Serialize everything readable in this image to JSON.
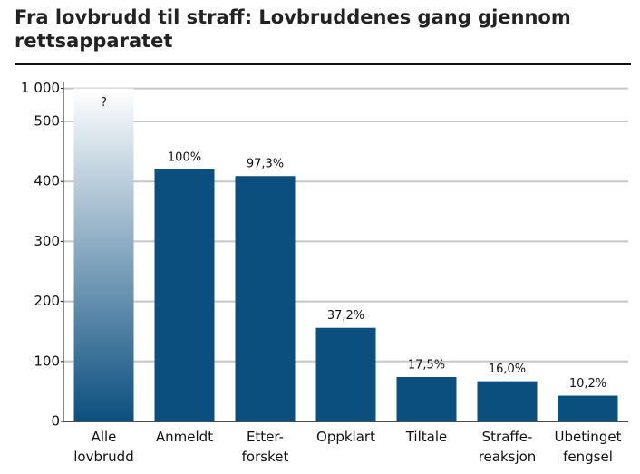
{
  "chart_data": {
    "type": "bar",
    "title": "Fra lovbrudd til straff: Lovbruddenes gang gjennom rettsapparatet",
    "categories": [
      "Alle\nlovbrudd",
      "Anmeldt",
      "Etter-\nforsket",
      "Oppklart",
      "Tiltale",
      "Straffe-\nreaksjon",
      "Ubetinget\nfengsel"
    ],
    "values": [
      1000,
      420,
      409,
      156,
      74,
      67,
      43
    ],
    "value_labels": [
      "?",
      "100%",
      "97,3%",
      "37,2%",
      "17,5%",
      "16,0%",
      "10,2%"
    ],
    "color": "#0b4f7f",
    "ylim": [
      0,
      1000
    ],
    "yticks": [
      0,
      100,
      200,
      300,
      400,
      500,
      {
        "value": 1000,
        "label": "1 000"
      }
    ],
    "axis_break": true,
    "grid": true
  }
}
